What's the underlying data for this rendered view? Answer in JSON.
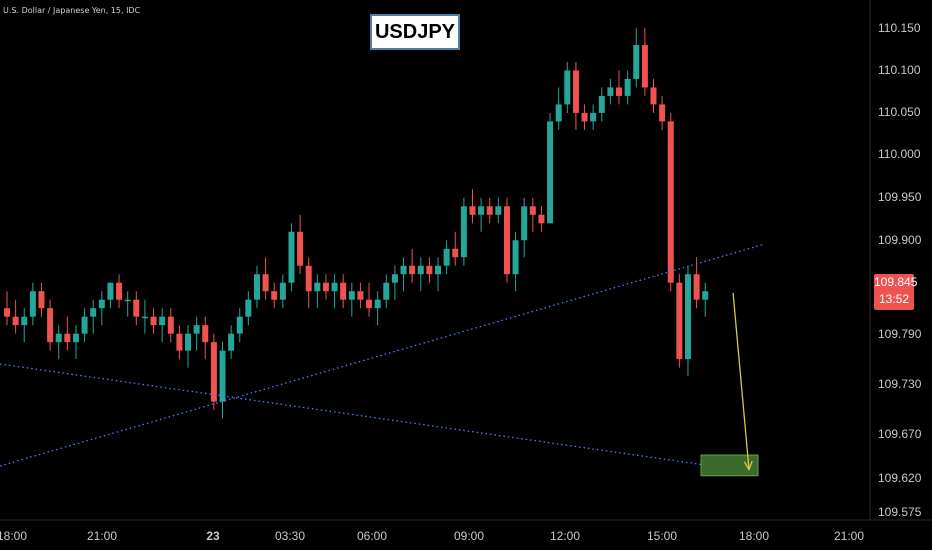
{
  "header": {
    "symbol_info": "U.S. Dollar / Japanese Yen, 15, IDC",
    "title": "USDJPY"
  },
  "price_badge": {
    "price": "109.845",
    "countdown": "13:52"
  },
  "chart_data": {
    "type": "candlestick",
    "symbol": "USDJPY",
    "timeframe": "15",
    "grid": false,
    "y_ticks": [
      110.15,
      110.1,
      110.05,
      110.0,
      109.95,
      109.9,
      109.845,
      109.79,
      109.73,
      109.67,
      109.62,
      109.575
    ],
    "y_tick_labels": [
      "110.150",
      "110.100",
      "110.050",
      "110.000",
      "109.950",
      "109.900",
      "109.845",
      "109.790",
      "109.730",
      "109.670",
      "109.620",
      "109.575"
    ],
    "x_tick_labels": [
      "18:00",
      "21:00",
      "23",
      "03:30",
      "06:00",
      "09:00",
      "12:00",
      "15:00",
      "18:00",
      "21:00"
    ],
    "colors": {
      "up": "#26a69a",
      "down": "#ef5350",
      "trendline": "#4f7cff",
      "arrow": "#d4c94a",
      "target_box": "#3a6b2a"
    },
    "candles": [
      [
        109.82,
        109.84,
        109.8,
        109.81
      ],
      [
        109.81,
        109.83,
        109.79,
        109.8
      ],
      [
        109.8,
        109.82,
        109.78,
        109.81
      ],
      [
        109.81,
        109.85,
        109.8,
        109.84
      ],
      [
        109.84,
        109.85,
        109.81,
        109.82
      ],
      [
        109.82,
        109.83,
        109.77,
        109.78
      ],
      [
        109.78,
        109.8,
        109.76,
        109.79
      ],
      [
        109.79,
        109.81,
        109.77,
        109.78
      ],
      [
        109.78,
        109.8,
        109.76,
        109.79
      ],
      [
        109.79,
        109.82,
        109.78,
        109.81
      ],
      [
        109.81,
        109.83,
        109.79,
        109.82
      ],
      [
        109.82,
        109.84,
        109.8,
        109.83
      ],
      [
        109.83,
        109.85,
        109.82,
        109.85
      ],
      [
        109.85,
        109.86,
        109.82,
        109.83
      ],
      [
        109.83,
        109.84,
        109.81,
        109.83
      ],
      [
        109.83,
        109.84,
        109.8,
        109.81
      ],
      [
        109.81,
        109.83,
        109.79,
        109.81
      ],
      [
        109.81,
        109.82,
        109.79,
        109.8
      ],
      [
        109.8,
        109.82,
        109.78,
        109.81
      ],
      [
        109.81,
        109.82,
        109.78,
        109.79
      ],
      [
        109.79,
        109.8,
        109.76,
        109.77
      ],
      [
        109.77,
        109.8,
        109.75,
        109.79
      ],
      [
        109.79,
        109.81,
        109.77,
        109.8
      ],
      [
        109.8,
        109.81,
        109.76,
        109.78
      ],
      [
        109.78,
        109.79,
        109.7,
        109.71
      ],
      [
        109.71,
        109.78,
        109.69,
        109.77
      ],
      [
        109.77,
        109.8,
        109.76,
        109.79
      ],
      [
        109.79,
        109.82,
        109.78,
        109.81
      ],
      [
        109.81,
        109.84,
        109.8,
        109.83
      ],
      [
        109.83,
        109.87,
        109.82,
        109.86
      ],
      [
        109.86,
        109.88,
        109.83,
        109.84
      ],
      [
        109.84,
        109.85,
        109.82,
        109.83
      ],
      [
        109.83,
        109.86,
        109.82,
        109.85
      ],
      [
        109.85,
        109.92,
        109.84,
        109.91
      ],
      [
        109.91,
        109.93,
        109.86,
        109.87
      ],
      [
        109.87,
        109.88,
        109.82,
        109.84
      ],
      [
        109.84,
        109.86,
        109.82,
        109.85
      ],
      [
        109.85,
        109.86,
        109.83,
        109.84
      ],
      [
        109.84,
        109.86,
        109.82,
        109.85
      ],
      [
        109.85,
        109.86,
        109.82,
        109.83
      ],
      [
        109.83,
        109.85,
        109.81,
        109.84
      ],
      [
        109.84,
        109.85,
        109.82,
        109.83
      ],
      [
        109.83,
        109.85,
        109.81,
        109.82
      ],
      [
        109.82,
        109.84,
        109.8,
        109.83
      ],
      [
        109.83,
        109.86,
        109.82,
        109.85
      ],
      [
        109.85,
        109.87,
        109.83,
        109.86
      ],
      [
        109.86,
        109.88,
        109.84,
        109.87
      ],
      [
        109.87,
        109.89,
        109.85,
        109.86
      ],
      [
        109.86,
        109.88,
        109.84,
        109.87
      ],
      [
        109.87,
        109.88,
        109.85,
        109.86
      ],
      [
        109.86,
        109.88,
        109.84,
        109.87
      ],
      [
        109.87,
        109.9,
        109.86,
        109.89
      ],
      [
        109.89,
        109.91,
        109.87,
        109.88
      ],
      [
        109.88,
        109.95,
        109.87,
        109.94
      ],
      [
        109.94,
        109.96,
        109.92,
        109.93
      ],
      [
        109.93,
        109.95,
        109.91,
        109.94
      ],
      [
        109.94,
        109.95,
        109.92,
        109.93
      ],
      [
        109.93,
        109.95,
        109.92,
        109.94
      ],
      [
        109.94,
        109.95,
        109.85,
        109.86
      ],
      [
        109.86,
        109.91,
        109.84,
        109.9
      ],
      [
        109.9,
        109.95,
        109.88,
        109.94
      ],
      [
        109.94,
        109.95,
        109.91,
        109.93
      ],
      [
        109.93,
        109.94,
        109.91,
        109.92
      ],
      [
        109.92,
        110.05,
        109.92,
        110.04
      ],
      [
        110.04,
        110.08,
        110.03,
        110.06
      ],
      [
        110.06,
        110.11,
        110.05,
        110.1
      ],
      [
        110.1,
        110.11,
        110.03,
        110.05
      ],
      [
        110.05,
        110.06,
        110.03,
        110.04
      ],
      [
        110.04,
        110.06,
        110.03,
        110.05
      ],
      [
        110.05,
        110.08,
        110.04,
        110.07
      ],
      [
        110.07,
        110.09,
        110.06,
        110.08
      ],
      [
        110.08,
        110.1,
        110.06,
        110.07
      ],
      [
        110.07,
        110.1,
        110.06,
        110.09
      ],
      [
        110.09,
        110.15,
        110.08,
        110.13
      ],
      [
        110.13,
        110.15,
        110.07,
        110.08
      ],
      [
        110.08,
        110.09,
        110.05,
        110.06
      ],
      [
        110.06,
        110.07,
        110.03,
        110.04
      ],
      [
        110.04,
        110.05,
        109.84,
        109.85
      ],
      [
        109.85,
        109.86,
        109.75,
        109.76
      ],
      [
        109.76,
        109.87,
        109.74,
        109.86
      ],
      [
        109.86,
        109.88,
        109.82,
        109.83
      ],
      [
        109.83,
        109.85,
        109.81,
        109.84
      ]
    ],
    "annotation": {
      "type": "arrow",
      "to": {
        "bar": 89,
        "price": 109.63
      },
      "target_box": {
        "price_low": 109.625,
        "price_high": 109.64
      }
    }
  }
}
